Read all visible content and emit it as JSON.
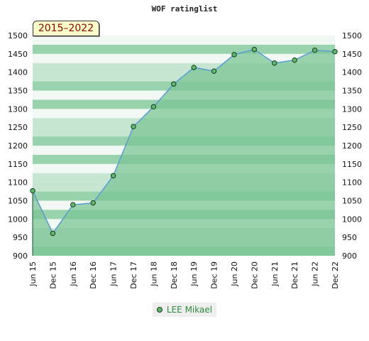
{
  "chart_data": {
    "type": "area",
    "title": "WOF ratinglist",
    "badge": "2015–2022",
    "categories": [
      "Jun 15",
      "Dec 15",
      "Jun 16",
      "Dec 16",
      "Jun 17",
      "Dec 17",
      "Jun 18",
      "Dec 18",
      "Jun 19",
      "Dec 19",
      "Jun 20",
      "Dec 20",
      "Jun 21",
      "Dec 21",
      "Jun 22",
      "Dec 22"
    ],
    "series": [
      {
        "name": "LEE Mikael",
        "values": [
          1077,
          961,
          1039,
          1044,
          1118,
          1252,
          1306,
          1368,
          1413,
          1403,
          1448,
          1462,
          1425,
          1433,
          1460,
          1456
        ]
      }
    ],
    "ylim": [
      900,
      1500
    ],
    "yticks": [
      900,
      950,
      1000,
      1050,
      1100,
      1150,
      1200,
      1250,
      1300,
      1350,
      1400,
      1450,
      1500
    ],
    "grid": true,
    "legend_position": "bottom",
    "colors": {
      "line": "#5b9bd5",
      "fill": "#7bc495",
      "marker": "#5fb86f",
      "marker_stroke": "#1a3a1a",
      "band_light": "#f2f9f4",
      "band_mid": "#c6e6d1",
      "band_dark": "#99d3ad"
    }
  }
}
